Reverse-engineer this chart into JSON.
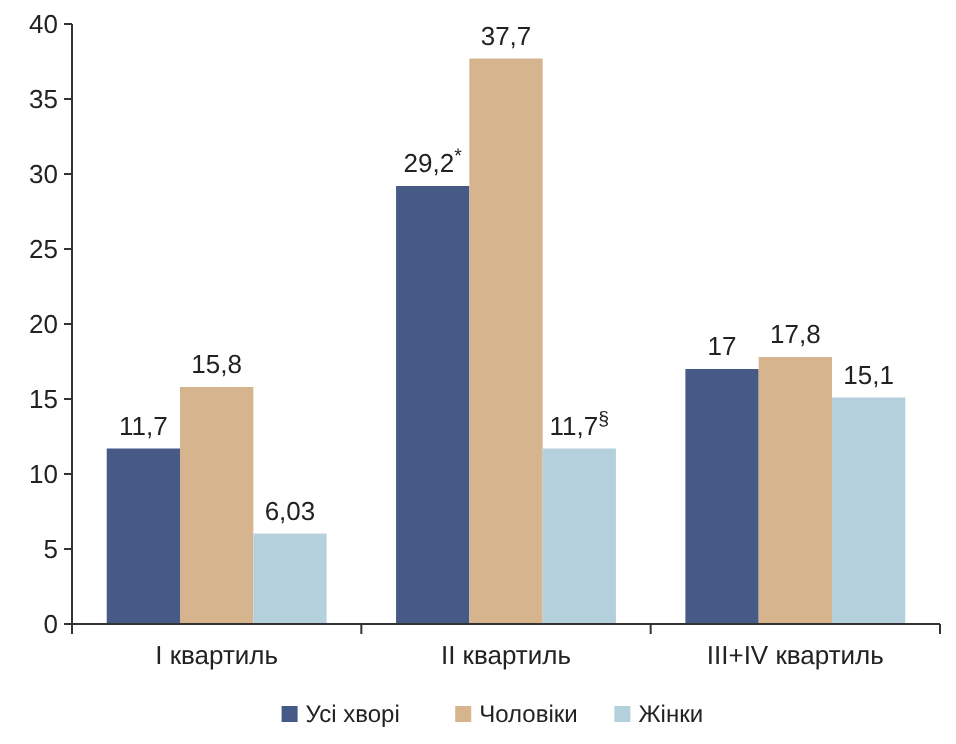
{
  "chart_data": {
    "type": "bar",
    "categories": [
      "I квартиль",
      "II квартиль",
      "III+IV квартиль"
    ],
    "series": [
      {
        "name": "Усі хворі",
        "color": "#475a86",
        "values": [
          11.7,
          29.2,
          17
        ],
        "value_labels": [
          "11,7",
          "29,2$^{*}$",
          "17"
        ]
      },
      {
        "name": "Чоловіки",
        "color": "#d5b48e",
        "values": [
          15.8,
          37.7,
          17.8
        ],
        "value_labels": [
          "15,8",
          "37,7",
          "17,8"
        ]
      },
      {
        "name": "Жінки",
        "color": "#b5d0dd",
        "values": [
          6.03,
          11.7,
          15.1
        ],
        "value_labels": [
          "6,03",
          "11,7$^{§}$",
          "15,1"
        ]
      }
    ],
    "ylim": [
      0,
      40
    ],
    "yticks": [
      0,
      5,
      10,
      15,
      20,
      25,
      30,
      35,
      40
    ],
    "grid": false,
    "legend": "bottom"
  }
}
